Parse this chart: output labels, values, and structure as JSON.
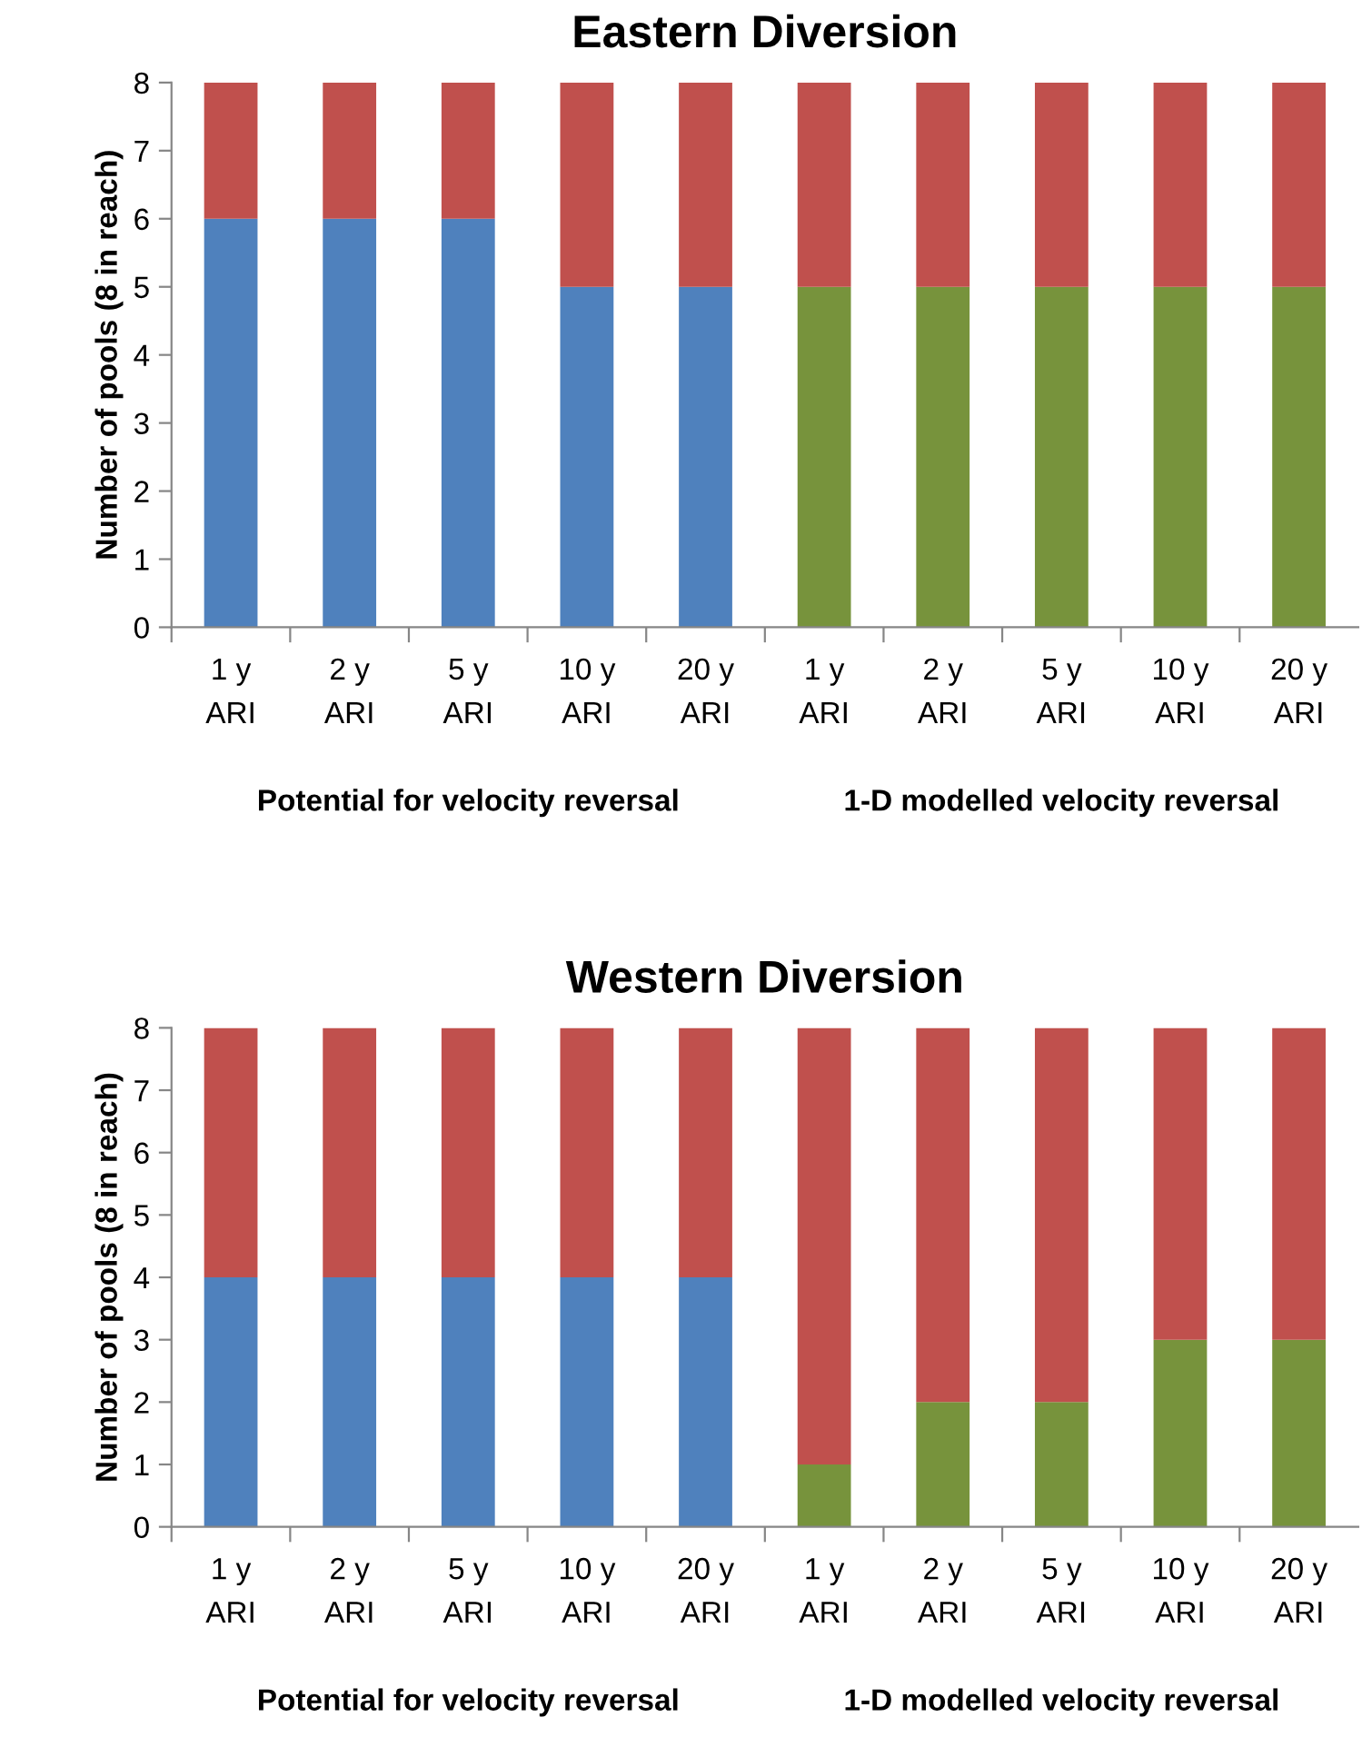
{
  "chart_data": [
    {
      "type": "bar",
      "title": "Eastern Diversion",
      "ylabel": "Number of pools (8 in reach)",
      "stacked": true,
      "categories": [
        "1 y\nARI",
        "2 y\nARI",
        "5 y\nARI",
        "10 y\nARI",
        "20 y\nARI",
        "1 y\nARI",
        "2 y\nARI",
        "5 y\nARI",
        "10 y\nARI",
        "20 y\nARI"
      ],
      "series": [
        {
          "colors": [
            "#4f81bd",
            "#4f81bd",
            "#4f81bd",
            "#4f81bd",
            "#4f81bd",
            "#77933c",
            "#77933c",
            "#77933c",
            "#77933c",
            "#77933c"
          ],
          "values": [
            6,
            6,
            6,
            5,
            5,
            5,
            5,
            5,
            5,
            5
          ]
        },
        {
          "color": "#c0504d",
          "values": [
            2,
            2,
            2,
            3,
            3,
            3,
            3,
            3,
            3,
            3
          ]
        }
      ],
      "ylim": [
        0,
        8
      ],
      "yticks": [
        0,
        1,
        2,
        3,
        4,
        5,
        6,
        7,
        8
      ],
      "grid": false,
      "legend": false,
      "annotations": [
        "Potential for velocity reversal",
        "1-D modelled velocity reversal"
      ]
    },
    {
      "type": "bar",
      "title": "Western Diversion",
      "ylabel": "Number of pools (8 in reach)",
      "stacked": true,
      "categories": [
        "1 y\nARI",
        "2 y\nARI",
        "5 y\nARI",
        "10 y\nARI",
        "20 y\nARI",
        "1 y\nARI",
        "2 y\nARI",
        "5 y\nARI",
        "10 y\nARI",
        "20 y\nARI"
      ],
      "series": [
        {
          "colors": [
            "#4f81bd",
            "#4f81bd",
            "#4f81bd",
            "#4f81bd",
            "#4f81bd",
            "#77933c",
            "#77933c",
            "#77933c",
            "#77933c",
            "#77933c"
          ],
          "values": [
            4,
            4,
            4,
            4,
            4,
            1,
            2,
            2,
            3,
            3
          ]
        },
        {
          "color": "#c0504d",
          "values": [
            4,
            4,
            4,
            4,
            4,
            7,
            6,
            6,
            5,
            5
          ]
        }
      ],
      "ylim": [
        0,
        8
      ],
      "yticks": [
        0,
        1,
        2,
        3,
        4,
        5,
        6,
        7,
        8
      ],
      "grid": false,
      "legend": false,
      "annotations": [
        "Potential for velocity reversal",
        "1-D modelled velocity reversal"
      ]
    }
  ]
}
